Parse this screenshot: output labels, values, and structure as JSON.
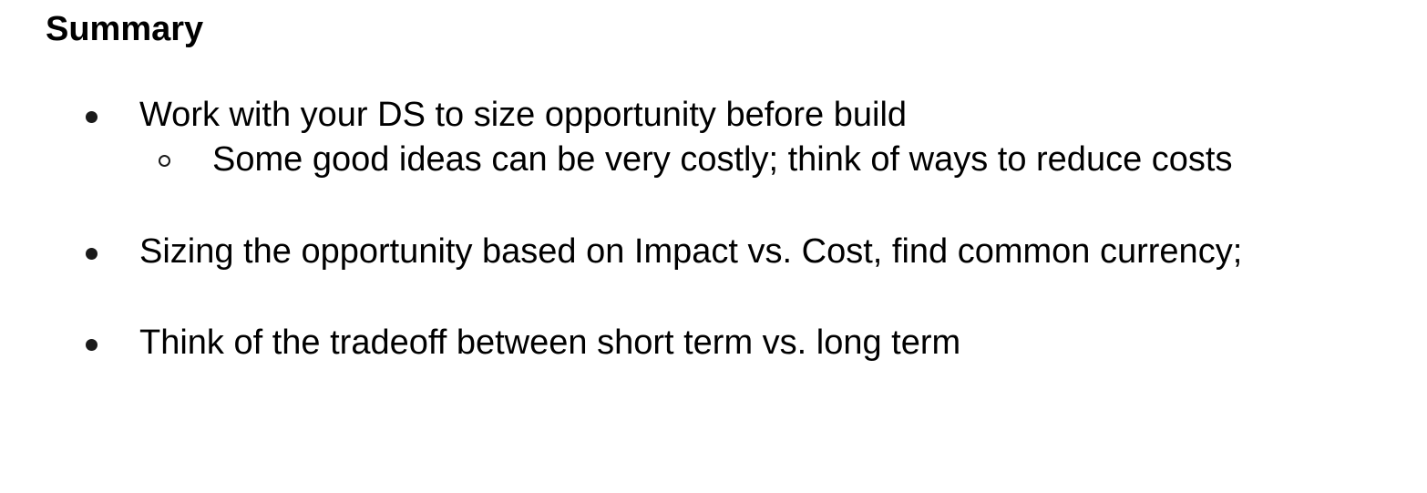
{
  "slide": {
    "title": "Summary",
    "bullets": [
      {
        "text": "Work with your DS to size opportunity before build",
        "sub_bullets": [
          {
            "text": "Some good ideas can be very costly; think of ways to reduce costs"
          }
        ]
      },
      {
        "text": "Sizing the opportunity based on Impact vs. Cost, find common currency;"
      },
      {
        "text": "Think of the tradeoff between short term vs. long term"
      }
    ]
  }
}
